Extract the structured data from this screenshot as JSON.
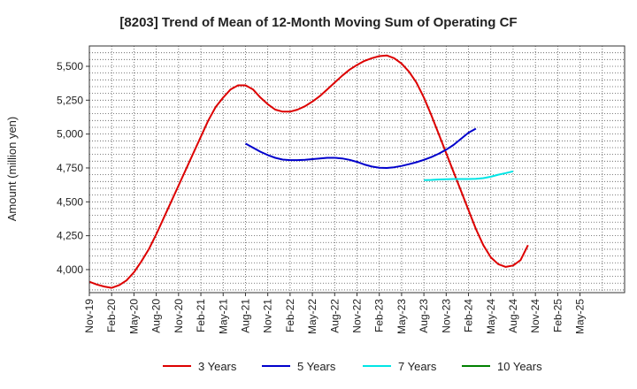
{
  "chart_data": {
    "type": "line",
    "title": "[8203]  Trend of Mean of 12-Month Moving Sum of Operating CF",
    "xlabel": "",
    "ylabel": "Amount (million yen)",
    "ylim": [
      3830,
      5650
    ],
    "yticks": [
      4000,
      4250,
      4500,
      4750,
      5000,
      5250,
      5500
    ],
    "ytick_labels": [
      "4,000",
      "4,250",
      "4,500",
      "4,750",
      "5,000",
      "5,250",
      "5,500"
    ],
    "x_start": "Nov-19",
    "n_months": 72,
    "xticks": [
      "Nov-19",
      "Feb-20",
      "May-20",
      "Aug-20",
      "Nov-20",
      "Feb-21",
      "May-21",
      "Aug-21",
      "Nov-21",
      "Feb-22",
      "May-22",
      "Aug-22",
      "Nov-22",
      "Feb-23",
      "May-23",
      "Aug-23",
      "Nov-23",
      "Feb-24",
      "May-24",
      "Aug-24",
      "Nov-24",
      "Feb-25",
      "May-25"
    ],
    "grid": true,
    "legend_position": "bottom",
    "series": [
      {
        "name": "3 Years",
        "color": "#dd0000",
        "start_index": 0,
        "values": [
          3910,
          3890,
          3875,
          3865,
          3885,
          3920,
          3980,
          4060,
          4150,
          4260,
          4380,
          4500,
          4620,
          4740,
          4860,
          4980,
          5100,
          5200,
          5270,
          5330,
          5360,
          5360,
          5330,
          5270,
          5220,
          5180,
          5165,
          5165,
          5180,
          5205,
          5240,
          5280,
          5330,
          5380,
          5430,
          5475,
          5510,
          5540,
          5560,
          5575,
          5580,
          5560,
          5520,
          5460,
          5380,
          5270,
          5140,
          5000,
          4860,
          4720,
          4580,
          4440,
          4300,
          4180,
          4090,
          4040,
          4020,
          4030,
          4070,
          4180
        ]
      },
      {
        "name": "5 Years",
        "color": "#0000cc",
        "start_index": 21,
        "values": [
          4930,
          4900,
          4870,
          4845,
          4825,
          4812,
          4808,
          4808,
          4810,
          4815,
          4820,
          4825,
          4825,
          4820,
          4810,
          4795,
          4775,
          4760,
          4752,
          4750,
          4755,
          4765,
          4778,
          4792,
          4810,
          4830,
          4855,
          4885,
          4920,
          4965,
          5010,
          5040
        ]
      },
      {
        "name": "7 Years",
        "color": "#00e5e5",
        "start_index": 45,
        "values": [
          4660,
          4662,
          4665,
          4667,
          4668,
          4668,
          4668,
          4670,
          4675,
          4685,
          4700,
          4712,
          4725
        ]
      },
      {
        "name": "10 Years",
        "color": "#008000",
        "start_index": 0,
        "values": []
      }
    ]
  }
}
